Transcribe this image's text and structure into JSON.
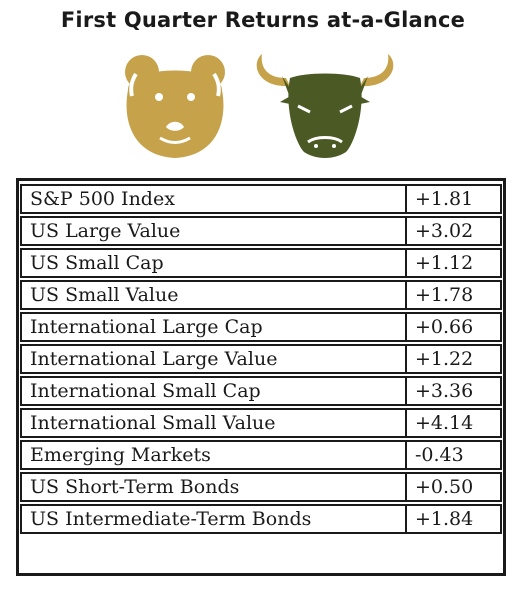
{
  "title": "First Quarter Returns at-a-Glance",
  "colors": {
    "bear": "#c6a24a",
    "bull": "#4b5a25",
    "bull_horns": "#c6a24a",
    "text": "#1a1a1a"
  },
  "icons": [
    "bear-icon",
    "bull-icon"
  ],
  "rows": [
    {
      "name": "S&P 500 Index",
      "value": "+1.81"
    },
    {
      "name": "US Large Value",
      "value": "+3.02"
    },
    {
      "name": "US Small Cap",
      "value": "+1.12"
    },
    {
      "name": "US Small Value",
      "value": "+1.78"
    },
    {
      "name": "International Large Cap",
      "value": "+0.66"
    },
    {
      "name": "International Large Value",
      "value": "+1.22"
    },
    {
      "name": "International Small Cap",
      "value": "+3.36"
    },
    {
      "name": "International Small Value",
      "value": "+4.14"
    },
    {
      "name": "Emerging Markets",
      "value": "-0.43"
    },
    {
      "name": "US Short-Term Bonds",
      "value": "+0.50"
    },
    {
      "name": "US Intermediate-Term Bonds",
      "value": "+1.84"
    }
  ]
}
